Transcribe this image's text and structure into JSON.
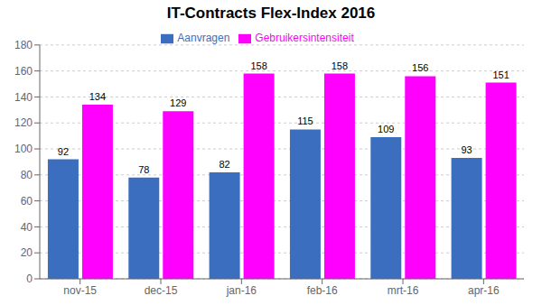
{
  "chart_data": {
    "type": "bar",
    "title": "IT-Contracts Flex-Index 2016",
    "categories": [
      "nov-15",
      "dec-15",
      "jan-16",
      "feb-16",
      "mrt-16",
      "apr-16"
    ],
    "series": [
      {
        "name": "Aanvragen",
        "color": "#3c6ebf",
        "values": [
          92,
          78,
          82,
          115,
          109,
          93
        ]
      },
      {
        "name": "Gebruikersintensiteit",
        "color": "#ff00ff",
        "values": [
          134,
          129,
          158,
          158,
          156,
          151
        ]
      }
    ],
    "ylim": [
      0,
      180
    ],
    "yticks": [
      0,
      20,
      40,
      60,
      80,
      100,
      120,
      140,
      160,
      180
    ],
    "grid": true,
    "legend": "top",
    "data_labels": true
  }
}
